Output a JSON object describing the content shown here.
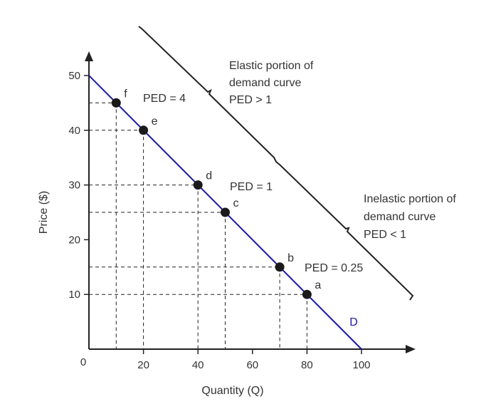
{
  "chart_data": {
    "type": "line",
    "xlabel": "Quantity (Q)",
    "ylabel": "Price ($)",
    "xlim": [
      0,
      100
    ],
    "ylim": [
      0,
      50
    ],
    "origin_label": "0",
    "x_ticks": [
      20,
      40,
      60,
      80,
      100
    ],
    "y_ticks": [
      10,
      20,
      30,
      40,
      50
    ],
    "series": [
      {
        "name": "D",
        "color": "#1a1aa6",
        "x": [
          0,
          100
        ],
        "y": [
          50,
          0
        ]
      }
    ],
    "points": [
      {
        "label": "f",
        "x": 10,
        "y": 45
      },
      {
        "label": "e",
        "x": 20,
        "y": 40
      },
      {
        "label": "d",
        "x": 40,
        "y": 30
      },
      {
        "label": "c",
        "x": 50,
        "y": 25
      },
      {
        "label": "b",
        "x": 70,
        "y": 15
      },
      {
        "label": "a",
        "x": 80,
        "y": 10
      }
    ],
    "annotations": {
      "ped_4": "PED = 4",
      "ped_1": "PED = 1",
      "ped_025": "PED = 0.25",
      "elastic_line1": "Elastic portion of",
      "elastic_line2": "demand curve",
      "elastic_line3": "PED > 1",
      "inelastic_line1": "Inelastic portion of",
      "inelastic_line2": "demand curve",
      "inelastic_line3": "PED < 1"
    },
    "grid": false,
    "guide_lines": "dashed"
  }
}
